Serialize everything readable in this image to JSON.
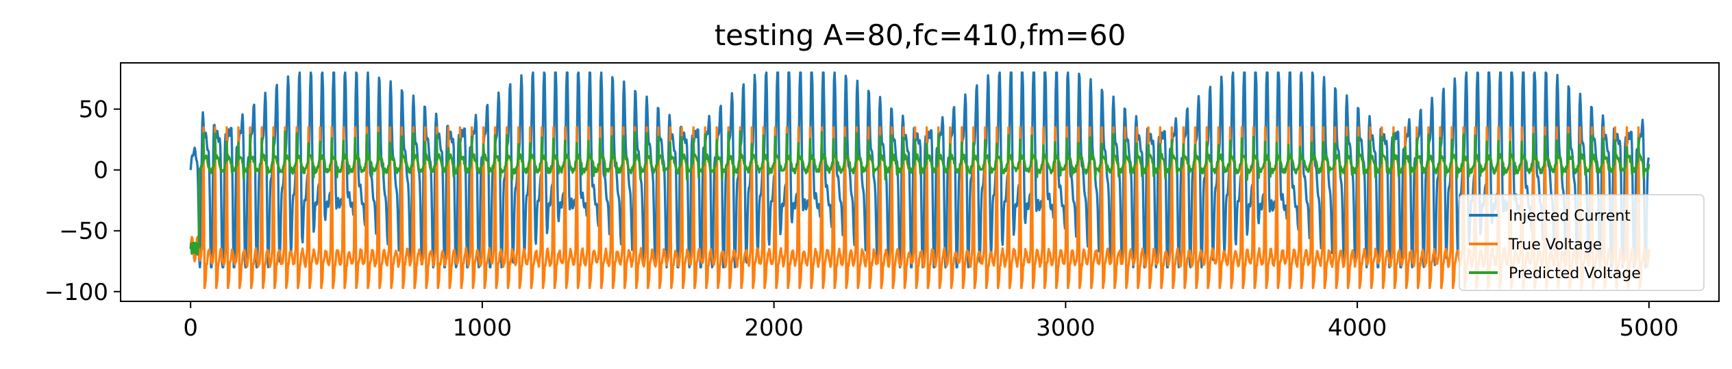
{
  "chart_data": {
    "type": "line",
    "title": "testing A=80,fc=410,fm=60",
    "xlabel": "",
    "ylabel": "",
    "xlim": [
      -240,
      5240
    ],
    "ylim": [
      -108,
      88
    ],
    "x_ticks": [
      0,
      1000,
      2000,
      3000,
      4000,
      5000
    ],
    "x_tick_labels": [
      "0",
      "1000",
      "2000",
      "3000",
      "4000",
      "5000"
    ],
    "y_ticks": [
      50,
      0,
      -50,
      -100
    ],
    "y_tick_labels": [
      "50",
      "0",
      "−50",
      "−100"
    ],
    "grid": false,
    "legend_position": "lower-right",
    "x_start": 0,
    "x_end": 5000,
    "series": [
      {
        "name": "Injected Current",
        "color": "#1f77b4",
        "description_values": {
          "amplitude_max": 80,
          "amplitude_min": -80,
          "typical_peak_range": [
            70,
            80
          ],
          "period_samples": 40
        }
      },
      {
        "name": "True Voltage",
        "color": "#ff7f0e",
        "description_values": {
          "resting_level": -65,
          "spike_peak": 35,
          "min_level": -97,
          "spike_period_samples": 40,
          "first_spike_x": 40
        }
      },
      {
        "name": "Predicted Voltage",
        "color": "#2ca02c",
        "description_values": {
          "start_value": -65,
          "baseline": 5,
          "fluctuation_range": [
            -8,
            33
          ]
        }
      }
    ]
  }
}
